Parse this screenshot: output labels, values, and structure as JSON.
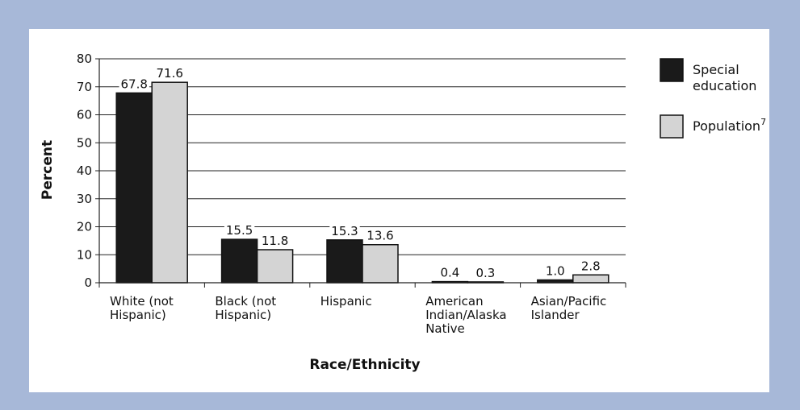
{
  "chart_data": {
    "type": "bar",
    "categories": [
      [
        "White (not",
        "Hispanic)"
      ],
      [
        "Black (not",
        "Hispanic)"
      ],
      [
        "Hispanic"
      ],
      [
        "American",
        "Indian/Alaska",
        "Native"
      ],
      [
        "Asian/Pacific",
        "Islander"
      ]
    ],
    "series": [
      {
        "name": "Special education",
        "legend_lines": [
          "Special",
          "education"
        ],
        "values": [
          67.8,
          15.5,
          15.3,
          0.4,
          1.0
        ],
        "labels": [
          "67.8",
          "15.5",
          "15.3",
          "0.4",
          "1.0"
        ],
        "color": "#1a1a1a"
      },
      {
        "name": "Population",
        "legend_lines": [
          "Population"
        ],
        "legend_sup": "7",
        "values": [
          71.6,
          11.8,
          13.6,
          0.3,
          2.8
        ],
        "labels": [
          "71.6",
          "11.8",
          "13.6",
          "0.3",
          "2.8"
        ],
        "color": "#d4d4d4"
      }
    ],
    "yticks": [
      "0",
      "10",
      "20",
      "30",
      "40",
      "50",
      "60",
      "70",
      "80"
    ],
    "ylim": [
      0,
      80
    ],
    "ylabel": "Percent",
    "xlabel": "Race/Ethnicity",
    "grid": true,
    "legend_position": "right"
  }
}
